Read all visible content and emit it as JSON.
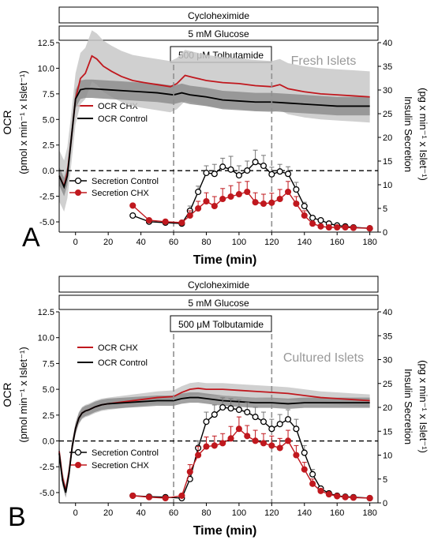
{
  "figure": {
    "panel_A": {
      "letter": "A",
      "bar_top": "Cycloheximide",
      "bar_mid": "5 mM Glucose",
      "tolb_label": "500 μM Tolbutamide",
      "annotation": "Fresh Islets",
      "ylabel_left_1": "OCR",
      "ylabel_left_2": "(pmol x min⁻¹ x Islet⁻¹)",
      "ylabel_right_1": "Insulin Secretion",
      "ylabel_right_2": "(pg x min⁻¹ x Islet⁻¹)",
      "xlabel": "Time  (min)",
      "legend_ocr": [
        "OCR CHX",
        "OCR Control"
      ],
      "legend_sec": [
        "Secretion Control",
        "Secretion CHX"
      ]
    },
    "panel_B": {
      "letter": "B",
      "bar_top": "Cycloheximide",
      "bar_mid": "5 mM Glucose",
      "tolb_label": "500 μM Tolbutamide",
      "annotation": "Cultured Islets",
      "ylabel_left_1": "OCR",
      "ylabel_left_2": "(pmol min⁻¹ x Islet⁻¹)",
      "ylabel_right_1": "Insulin Secretion",
      "ylabel_right_2": "(pg x min⁻¹ x Islet⁻¹)",
      "xlabel": "Time (min)",
      "legend_ocr": [
        "OCR CHX",
        "OCR Control"
      ],
      "legend_sec": [
        "Secretion Control",
        "Secretion CHX"
      ]
    },
    "colors": {
      "chx": "#c0181e",
      "control": "#000000",
      "band_chx": "#c8c8c8",
      "band_ctrl": "#8a8a8a",
      "vline": "#909090"
    }
  },
  "chart_data": [
    {
      "type": "line",
      "panel": "A",
      "xlim": [
        -10,
        185
      ],
      "ylim_left": [
        -6,
        12.5
      ],
      "ylim_right": [
        0,
        40
      ],
      "x_ticks": [
        0,
        20,
        40,
        60,
        80,
        100,
        120,
        140,
        160,
        180
      ],
      "y_left_ticks": [
        -5.0,
        -2.5,
        0.0,
        2.5,
        5.0,
        7.5,
        10.0,
        12.5
      ],
      "y_right_ticks": [
        0,
        5,
        10,
        15,
        20,
        25,
        30,
        35,
        40
      ],
      "vlines": [
        60,
        120
      ],
      "hline": 0,
      "ocr_series": [
        {
          "name": "OCR CHX",
          "x": [
            -10,
            -7,
            -5,
            -3,
            0,
            3,
            6,
            10,
            13,
            17,
            22,
            28,
            35,
            42,
            50,
            58,
            62,
            67,
            72,
            80,
            90,
            100,
            110,
            120,
            125,
            130,
            140,
            150,
            160,
            170,
            180
          ],
          "y": [
            -0.5,
            -1.5,
            -0.2,
            2.5,
            7.0,
            9.0,
            9.5,
            11.2,
            10.9,
            10.2,
            9.7,
            9.2,
            8.8,
            8.6,
            8.4,
            8.2,
            8.5,
            9.3,
            9.1,
            8.8,
            8.6,
            8.5,
            8.3,
            8.2,
            8.4,
            8.0,
            7.7,
            7.5,
            7.4,
            7.3,
            7.2
          ],
          "band": 2.5
        },
        {
          "name": "OCR Control",
          "x": [
            -10,
            -7,
            -5,
            -3,
            0,
            3,
            6,
            10,
            15,
            20,
            30,
            40,
            50,
            60,
            65,
            70,
            80,
            90,
            100,
            110,
            120,
            130,
            140,
            150,
            160,
            170,
            180
          ],
          "y": [
            -0.5,
            -1.6,
            -0.5,
            2.5,
            7.0,
            7.9,
            8.0,
            8.0,
            7.95,
            7.9,
            7.8,
            7.7,
            7.6,
            7.4,
            7.6,
            7.4,
            7.2,
            6.9,
            6.8,
            6.7,
            6.7,
            6.6,
            6.5,
            6.4,
            6.3,
            6.3,
            6.3
          ],
          "band": 0.9
        }
      ],
      "secretion_series": [
        {
          "name": "Secretion Control",
          "x": [
            35,
            45,
            55,
            65,
            70,
            75,
            80,
            85,
            90,
            95,
            100,
            105,
            110,
            115,
            120,
            125,
            130,
            135,
            140,
            145,
            150,
            155,
            160,
            165,
            170,
            180
          ],
          "y": [
            3.5,
            2.2,
            2.0,
            1.8,
            4.5,
            8.5,
            12.5,
            12.3,
            13.8,
            13.2,
            12.0,
            13.0,
            14.8,
            14.0,
            12.2,
            12.8,
            12.3,
            9.0,
            5.5,
            3.0,
            2.5,
            1.8,
            1.4,
            1.2,
            1.0,
            0.8
          ],
          "err": [
            0,
            0,
            0,
            0,
            1.0,
            1.2,
            1.5,
            2.0,
            1.8,
            2.8,
            2.0,
            2.0,
            2.5,
            2.2,
            1.5,
            1.5,
            1.5,
            1.5,
            0.8,
            0,
            0,
            0,
            0,
            0,
            0,
            0
          ]
        },
        {
          "name": "Secretion CHX",
          "x": [
            35,
            45,
            55,
            65,
            70,
            75,
            80,
            85,
            90,
            95,
            100,
            105,
            110,
            115,
            120,
            125,
            130,
            135,
            140,
            145,
            150,
            155,
            160,
            165,
            170,
            180
          ],
          "y": [
            5.6,
            2.5,
            2.2,
            2.0,
            3.5,
            5.0,
            6.5,
            5.5,
            7.0,
            7.5,
            8.0,
            8.5,
            6.3,
            6.0,
            6.2,
            7.0,
            8.5,
            6.0,
            3.5,
            1.8,
            1.2,
            1.0,
            1.0,
            1.0,
            0.9,
            0.8
          ],
          "err": [
            0,
            0,
            0,
            0,
            1.0,
            1.5,
            1.8,
            2.0,
            2.2,
            2.3,
            2.5,
            2.2,
            2.0,
            2.0,
            2.0,
            2.0,
            2.2,
            1.5,
            1.0,
            0,
            0,
            0,
            0,
            0,
            0,
            0
          ]
        }
      ]
    },
    {
      "type": "line",
      "panel": "B",
      "xlim": [
        -10,
        185
      ],
      "ylim_left": [
        -6,
        12.5
      ],
      "ylim_right": [
        0,
        40
      ],
      "x_ticks": [
        0,
        20,
        40,
        60,
        80,
        100,
        120,
        140,
        160,
        180
      ],
      "y_left_ticks": [
        -5.0,
        -2.5,
        0.0,
        2.5,
        5.0,
        7.5,
        10.0,
        12.5
      ],
      "y_right_ticks": [
        0,
        5,
        10,
        15,
        20,
        25,
        30,
        35,
        40
      ],
      "vlines": [
        60,
        120
      ],
      "hline": 0,
      "ocr_series": [
        {
          "name": "OCR CHX",
          "x": [
            -10,
            -8,
            -6,
            -4,
            -2,
            0,
            2,
            4,
            6,
            8,
            12,
            16,
            20,
            30,
            40,
            50,
            60,
            65,
            70,
            75,
            80,
            90,
            100,
            110,
            120,
            130,
            140,
            150,
            160,
            170,
            180
          ],
          "y": [
            -1.0,
            -3.5,
            -4.8,
            -3.0,
            -0.5,
            1.2,
            2.2,
            2.7,
            2.9,
            3.0,
            3.3,
            3.5,
            3.6,
            3.8,
            4.0,
            4.2,
            4.3,
            4.7,
            5.0,
            5.1,
            5.0,
            5.0,
            4.9,
            4.8,
            4.7,
            4.6,
            4.4,
            4.2,
            4.1,
            4.0,
            3.9
          ],
          "band": 0.6
        },
        {
          "name": "OCR Control",
          "x": [
            -10,
            -8,
            -6,
            -4,
            -2,
            0,
            2,
            4,
            6,
            8,
            12,
            16,
            20,
            30,
            40,
            50,
            60,
            65,
            70,
            75,
            80,
            90,
            100,
            110,
            120,
            130,
            140,
            150,
            160,
            170,
            180
          ],
          "y": [
            -1.2,
            -3.8,
            -5.0,
            -3.2,
            -0.5,
            1.2,
            2.2,
            2.7,
            2.9,
            3.0,
            3.3,
            3.5,
            3.6,
            3.7,
            3.8,
            3.9,
            3.9,
            4.1,
            4.2,
            4.2,
            4.1,
            3.9,
            3.8,
            3.7,
            3.7,
            3.6,
            3.7,
            3.7,
            3.7,
            3.7,
            3.7
          ],
          "band": 0.5
        }
      ],
      "secretion_series": [
        {
          "name": "Secretion Control",
          "x": [
            35,
            45,
            55,
            65,
            70,
            75,
            80,
            85,
            90,
            95,
            100,
            105,
            110,
            115,
            120,
            125,
            130,
            135,
            140,
            145,
            150,
            155,
            160,
            165,
            170,
            180
          ],
          "y": [
            1.5,
            1.3,
            1.2,
            1.0,
            5.0,
            11.5,
            17.0,
            18.5,
            20.0,
            19.8,
            19.5,
            19.0,
            18.0,
            17.0,
            15.5,
            16.5,
            17.5,
            15.5,
            10.5,
            6.0,
            3.0,
            2.0,
            1.5,
            1.3,
            1.2,
            1.0
          ],
          "err": [
            0,
            0,
            0,
            0,
            1.5,
            1.5,
            2.0,
            2.0,
            2.0,
            2.0,
            2.0,
            2.0,
            2.0,
            2.0,
            2.0,
            2.0,
            2.0,
            2.0,
            1.5,
            1.0,
            0,
            0,
            0,
            0,
            0,
            0
          ]
        },
        {
          "name": "Secretion CHX",
          "x": [
            35,
            45,
            55,
            65,
            70,
            75,
            80,
            85,
            90,
            95,
            100,
            105,
            110,
            115,
            120,
            125,
            130,
            135,
            140,
            145,
            150,
            155,
            160,
            165,
            170,
            180
          ],
          "y": [
            1.5,
            1.2,
            1.0,
            1.5,
            6.5,
            10.0,
            11.8,
            12.0,
            12.5,
            13.5,
            15.5,
            14.0,
            13.0,
            12.5,
            12.0,
            11.5,
            13.0,
            10.0,
            7.0,
            4.0,
            2.5,
            1.8,
            1.4,
            1.2,
            1.1,
            1.0
          ],
          "err": [
            0,
            0,
            0,
            0,
            1.5,
            1.8,
            2.0,
            2.0,
            2.0,
            2.5,
            2.5,
            2.2,
            2.2,
            2.0,
            2.0,
            2.0,
            2.2,
            2.0,
            1.5,
            1.0,
            0,
            0,
            0,
            0,
            0,
            0
          ]
        }
      ]
    }
  ]
}
